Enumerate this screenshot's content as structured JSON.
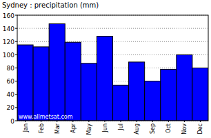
{
  "chart_data": {
    "type": "bar",
    "title": "Sydney : precipitation (mm)",
    "categories": [
      "Jan",
      "Feb",
      "Mar",
      "Apr",
      "May",
      "Jun",
      "Jul",
      "Aug",
      "Sep",
      "Oct",
      "Nov",
      "Dec"
    ],
    "values": [
      115,
      112,
      147,
      119,
      87,
      128,
      54,
      89,
      60,
      78,
      100,
      80
    ],
    "color": "#0000ff",
    "ylim": [
      0,
      160
    ],
    "yticks": [
      0,
      20,
      40,
      60,
      80,
      100,
      120,
      140,
      160
    ],
    "grid": true,
    "annotations": [
      "www.allmetsat.com"
    ]
  }
}
